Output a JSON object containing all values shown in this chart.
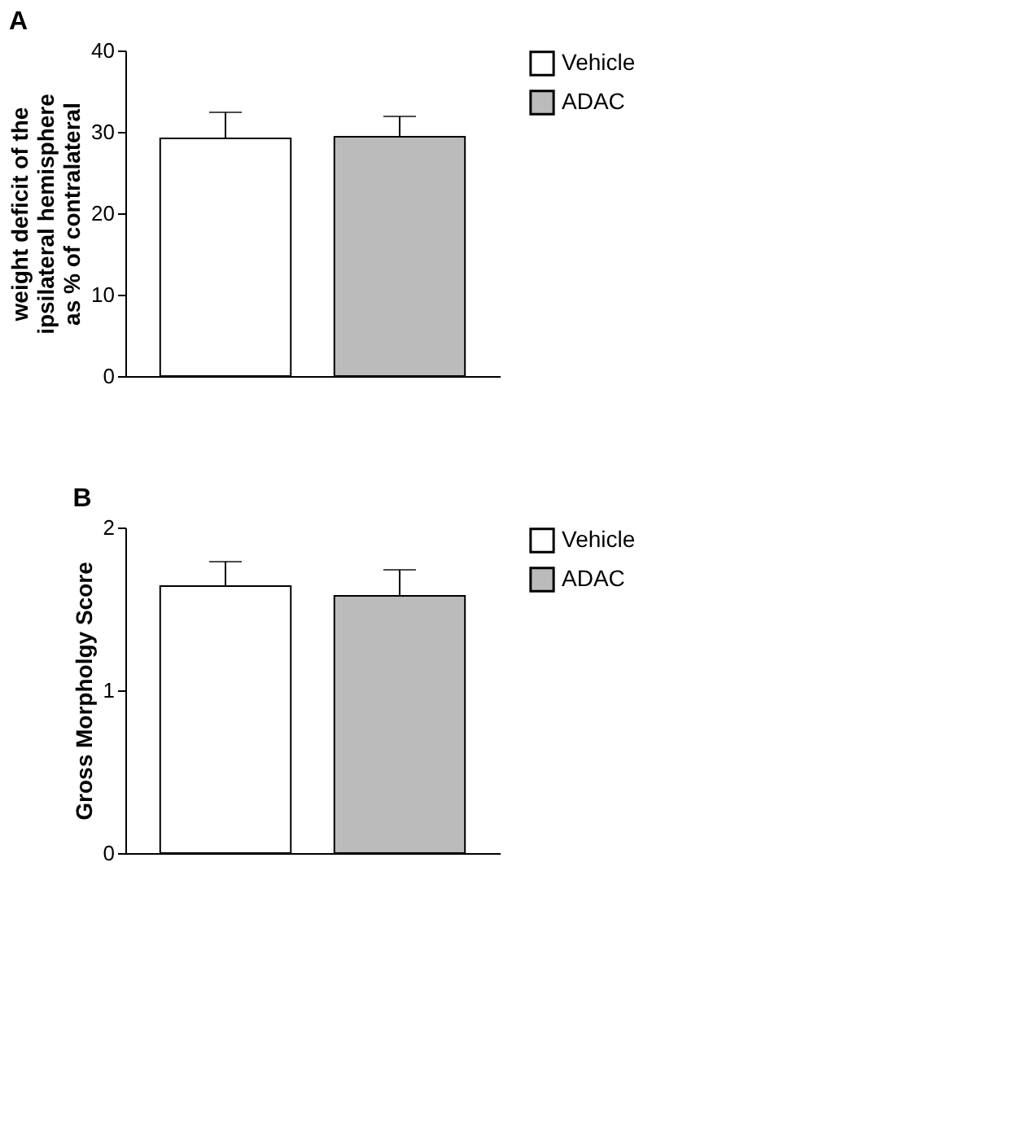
{
  "chart_data": [
    {
      "type": "bar",
      "title": "A",
      "ylabel": "weight deficit of the\nipsilateral hemisphere\nas % of contralateral",
      "categories": [
        null,
        null
      ],
      "ylim": [
        0,
        40
      ],
      "yticks": [
        0,
        10,
        20,
        30,
        40
      ],
      "grid": false,
      "legend": "top right",
      "series": [
        {
          "name": "Vehicle",
          "color": "#ffffff",
          "values": [
            29.2,
            null
          ],
          "errors": [
            [
              29.2,
              32.4
            ],
            null
          ]
        },
        {
          "name": "ADAC",
          "color": "#bbbbbb",
          "values": [
            null,
            29.4
          ],
          "errors": [
            null,
            [
              29.4,
              31.9
            ]
          ]
        }
      ]
    },
    {
      "type": "bar",
      "title": "B",
      "ylabel": "Gross Morpholgy Score",
      "categories": [
        null,
        null
      ],
      "ylim": [
        0,
        2
      ],
      "yticks": [
        0,
        1,
        2
      ],
      "grid": false,
      "legend": "right",
      "series": [
        {
          "name": "Vehicle",
          "color": "#ffffff",
          "values": [
            1.64,
            null
          ],
          "errors": [
            [
              1.64,
              1.79
            ],
            null
          ]
        },
        {
          "name": "ADAC",
          "color": "#bbbbbb",
          "values": [
            null,
            1.58
          ],
          "errors": [
            null,
            [
              1.58,
              1.74
            ]
          ]
        }
      ]
    }
  ]
}
